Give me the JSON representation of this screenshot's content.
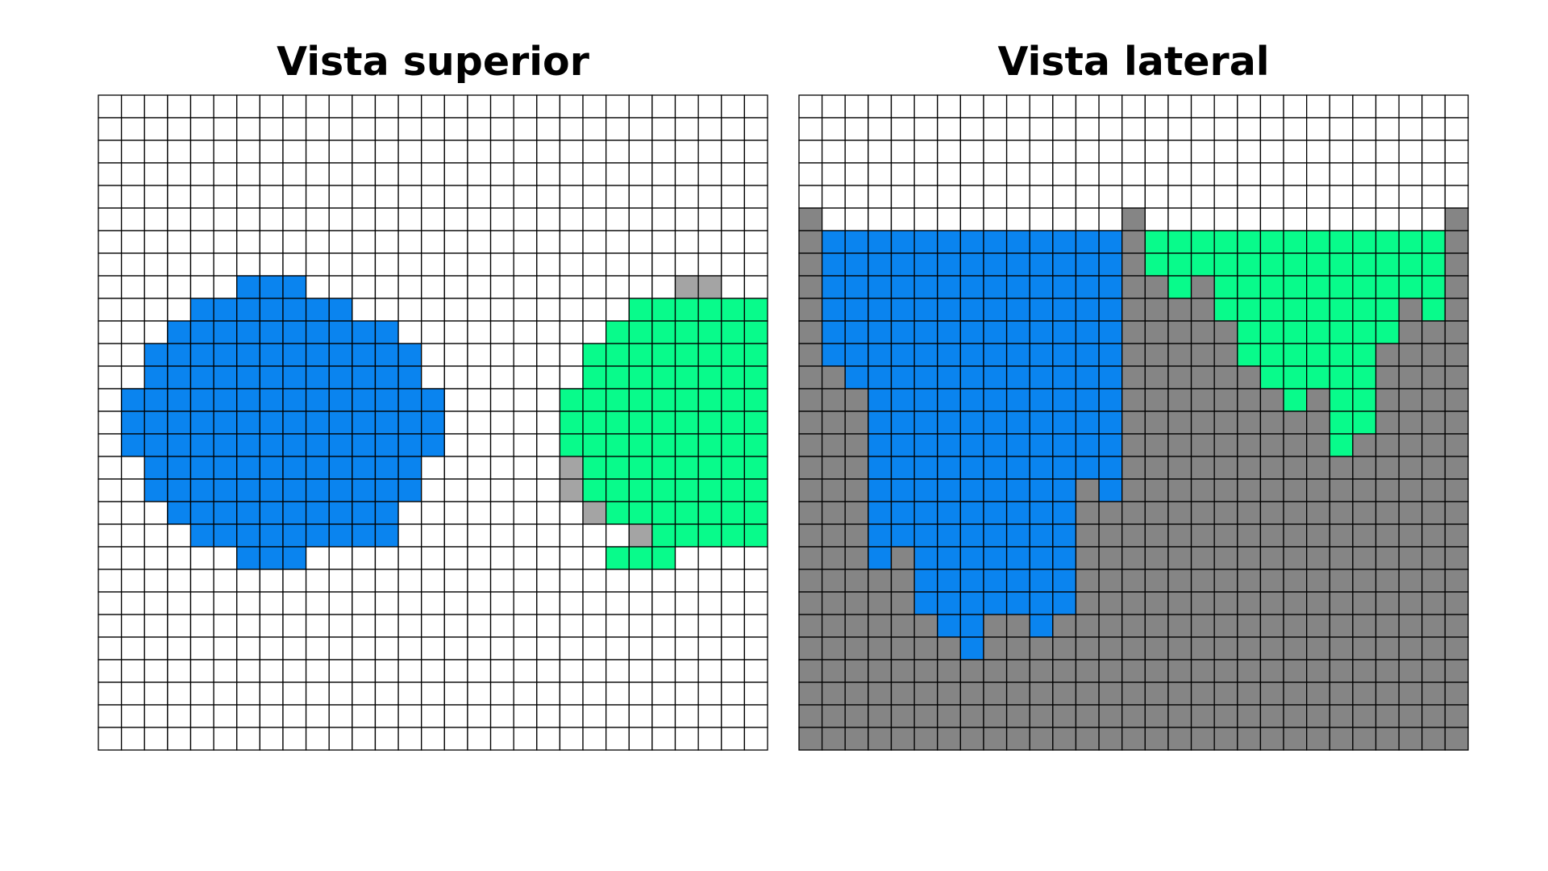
{
  "colors": {
    "background": "#ffffff",
    "empty": "#ffffff",
    "blue": "#0a84ef",
    "green": "#08fb8b",
    "gray_light": "#a4a4a4",
    "gray_dark": "#858585",
    "grid_line": "#000000"
  },
  "legend_codes": {
    ".": "empty",
    "B": "blue",
    "G": "green",
    "g": "gray_light",
    "D": "gray_dark"
  },
  "panels": [
    {
      "id": "top-view",
      "title": "Vista superior",
      "grid": [
        ".............................",
        ".............................",
        ".............................",
        ".............................",
        ".............................",
        ".............................",
        ".............................",
        ".............................",
        "......BBB................gg..",
        "....BBBBBBB............GGGGGGG",
        "...BBBBBBBBBB.........GGGGGGGGG",
        "..BBBBBBBBBBBB.......GGGGGGGGGGG",
        "..BBBBBBBBBBBB.......GGGGGGGGGGG",
        ".BBBBBBBBBBBBBB.....GGGGGGGGGGGGG",
        ".BBBBBBBBBBBBBB.....GGGGGGGGGGGGG",
        ".BBBBBBBBBBBBBB.....GGGGGGGGGGGGG",
        "..BBBBBBBBBBBB......gGGGGGGGGGGG",
        "..BBBBBBBBBBBB......gGGGGGGGGGGG",
        "...BBBBBBBBBB........gGGGGGGGGG",
        "....BBBBBBBBB..........gGGGGGG",
        "......BBB.............GGG",
        ".............................",
        ".............................",
        ".............................",
        ".............................",
        ".............................",
        ".............................",
        ".............................",
        "............................."
      ]
    },
    {
      "id": "side-view",
      "title": "Vista lateral",
      "grid": [
        ".............................",
        ".............................",
        ".............................",
        ".............................",
        ".............................",
        "D.............D.............D",
        "DBBBBBBBBBBBBBDGGGGGGGGGGGGGD",
        "DBBBBBBBBBBBBBDGGGGGGGGGGGGGD",
        "DBBBBBBBBBBBBBDDGDGGGGGGGGGGD",
        "DBBBBBBBBBBBBBDDDDGGGGGGGGDGD",
        "DBBBBBBBBBBBBBDDDDDGGGGGGGDDD",
        "DBBBBBBBBBBBBBDDDDDGGGGGGDDDD",
        "DDBBBBBBBBBBBBDDDDDDGGGGGDDDD",
        "DDDBBBBBBBBBBBDDDDDDDGDGGDDDD",
        "DDDBBBBBBBBBBBDDDDDDDDDGGDDDD",
        "DDDBBBBBBBBBBBDDDDDDDDDGDDDDD",
        "DDDBBBBBBBBBBBDDDDDDDDDDDDDDD",
        "DDDBBBBBBBBBDBDDDDDDDDDDDDDDD",
        "DDDBBBBBBBBBDDDDDDDDDDDDDDDDD",
        "DDDBBBBBBBBBDDDDDDDDDDDDDDDDD",
        "DDDBDBBBBBBBDDDDDDDDDDDDDDDDD",
        "DDDDDBBBBBBBDDDDDDDDDDDDDDDDD",
        "DDDDDBBBBBBBDDDDDDDDDDDDDDDDD",
        "DDDDDDBBDDBDDDDDDDDDDDDDDDDDD",
        "DDDDDDDBDDDDDDDDDDDDDDDDDDDDD",
        "DDDDDDDDDDDDDDDDDDDDDDDDDDDDD",
        "DDDDDDDDDDDDDDDDDDDDDDDDDDDDD",
        "DDDDDDDDDDDDDDDDDDDDDDDDDDDDD",
        "DDDDDDDDDDDDDDDDDDDDDDDDDDDDD",
        "DDDDDDDDDDDDDDDDDDDDDDDDDDDDD"
      ]
    }
  ]
}
